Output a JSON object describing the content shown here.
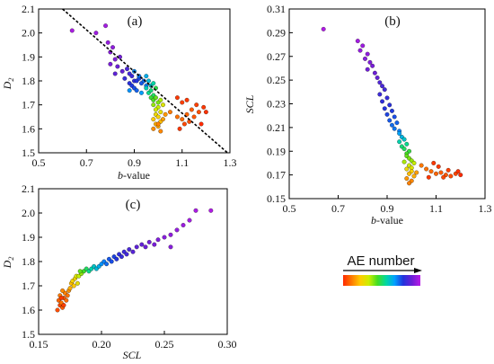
{
  "legend": {
    "title": "AE number"
  },
  "colorscale": [
    "#ff2a00",
    "#ff7a00",
    "#ffcc00",
    "#ccee00",
    "#44dd22",
    "#00d8a0",
    "#00a0ff",
    "#2233dd",
    "#6a1fd6",
    "#b81be6"
  ],
  "chart_data": [
    {
      "id": "a",
      "panel_label": "(a)",
      "type": "scatter",
      "xlabel": "b-value",
      "ylabel": "D2",
      "xlim": [
        0.5,
        1.3
      ],
      "ylim": [
        1.5,
        2.1
      ],
      "xticks": [
        "0.5",
        "0.7",
        "0.9",
        "1.1",
        "1.3"
      ],
      "yticks": [
        "1.5",
        "1.6",
        "1.7",
        "1.8",
        "1.9",
        "2.0",
        "2.1"
      ],
      "fit_line": {
        "x": [
          0.6,
          1.29
        ],
        "y": [
          2.1,
          1.5
        ]
      },
      "points": [
        [
          0.64,
          2.01,
          0.98
        ],
        [
          0.78,
          2.03,
          0.97
        ],
        [
          0.74,
          2.0,
          0.96
        ],
        [
          0.79,
          1.96,
          0.95
        ],
        [
          0.81,
          1.94,
          0.94
        ],
        [
          0.8,
          1.92,
          0.93
        ],
        [
          0.82,
          1.89,
          0.92
        ],
        [
          0.8,
          1.87,
          0.91
        ],
        [
          0.84,
          1.9,
          0.9
        ],
        [
          0.83,
          1.86,
          0.89
        ],
        [
          0.85,
          1.84,
          0.88
        ],
        [
          0.82,
          1.83,
          0.87
        ],
        [
          0.87,
          1.85,
          0.84
        ],
        [
          0.88,
          1.83,
          0.83
        ],
        [
          0.89,
          1.82,
          0.82
        ],
        [
          0.86,
          1.81,
          0.81
        ],
        [
          0.9,
          1.8,
          0.8
        ],
        [
          0.88,
          1.79,
          0.79
        ],
        [
          0.91,
          1.8,
          0.78
        ],
        [
          0.89,
          1.78,
          0.77
        ],
        [
          0.92,
          1.81,
          0.76
        ],
        [
          0.9,
          1.77,
          0.75
        ],
        [
          0.93,
          1.79,
          0.74
        ],
        [
          0.91,
          1.76,
          0.73
        ],
        [
          0.94,
          1.8,
          0.72
        ],
        [
          0.92,
          1.82,
          0.71
        ],
        [
          0.95,
          1.78,
          0.7
        ],
        [
          0.9,
          1.84,
          0.69
        ],
        [
          0.88,
          1.76,
          0.68
        ],
        [
          0.93,
          1.75,
          0.67
        ],
        [
          0.95,
          1.82,
          0.64
        ],
        [
          0.96,
          1.8,
          0.62
        ],
        [
          0.97,
          1.78,
          0.6
        ],
        [
          0.95,
          1.77,
          0.58
        ],
        [
          0.98,
          1.79,
          0.56
        ],
        [
          0.96,
          1.75,
          0.54
        ],
        [
          0.97,
          1.76,
          0.52
        ],
        [
          0.98,
          1.74,
          0.5
        ],
        [
          0.99,
          1.77,
          0.48
        ],
        [
          0.97,
          1.73,
          0.46
        ],
        [
          0.98,
          1.72,
          0.44
        ],
        [
          0.99,
          1.73,
          0.42
        ],
        [
          1.0,
          1.71,
          0.4
        ],
        [
          0.98,
          1.7,
          0.38
        ],
        [
          1.01,
          1.72,
          0.36
        ],
        [
          1.0,
          1.69,
          0.34
        ],
        [
          0.99,
          1.68,
          0.32
        ],
        [
          1.02,
          1.7,
          0.3
        ],
        [
          1.01,
          1.67,
          0.28
        ],
        [
          0.99,
          1.66,
          0.26
        ],
        [
          1.0,
          1.65,
          0.24
        ],
        [
          0.98,
          1.64,
          0.22
        ],
        [
          1.01,
          1.63,
          0.2
        ],
        [
          0.99,
          1.62,
          0.18
        ],
        [
          1.0,
          1.61,
          0.17
        ],
        [
          1.02,
          1.64,
          0.16
        ],
        [
          1.03,
          1.66,
          0.15
        ],
        [
          0.98,
          1.6,
          0.14
        ],
        [
          1.01,
          1.59,
          0.13
        ],
        [
          1.0,
          1.62,
          0.12
        ],
        [
          1.05,
          1.67,
          0.11
        ],
        [
          1.08,
          1.65,
          0.1
        ],
        [
          1.1,
          1.64,
          0.09
        ],
        [
          1.12,
          1.66,
          0.08
        ],
        [
          1.14,
          1.68,
          0.07
        ],
        [
          1.15,
          1.65,
          0.06
        ],
        [
          1.17,
          1.67,
          0.05
        ],
        [
          1.13,
          1.63,
          0.05
        ],
        [
          1.11,
          1.62,
          0.04
        ],
        [
          1.16,
          1.7,
          0.03
        ],
        [
          1.08,
          1.73,
          0.02
        ],
        [
          1.1,
          1.71,
          0.03
        ],
        [
          1.12,
          1.72,
          0.02
        ],
        [
          1.19,
          1.69,
          0.02
        ],
        [
          1.2,
          1.67,
          0.01
        ],
        [
          1.18,
          1.62,
          0.0
        ],
        [
          1.09,
          1.6,
          0.02
        ]
      ]
    },
    {
      "id": "b",
      "panel_label": "(b)",
      "type": "scatter",
      "xlabel": "b-value",
      "ylabel": "SCL",
      "xlim": [
        0.5,
        1.3
      ],
      "ylim": [
        0.15,
        0.31
      ],
      "xticks": [
        "0.5",
        "0.7",
        "0.9",
        "1.1",
        "1.3"
      ],
      "yticks": [
        "0.15",
        "0.17",
        "0.19",
        "0.21",
        "0.23",
        "0.25",
        "0.27",
        "0.29",
        "0.31"
      ],
      "points": [
        [
          0.64,
          0.293,
          0.99
        ],
        [
          0.78,
          0.283,
          0.97
        ],
        [
          0.8,
          0.279,
          0.96
        ],
        [
          0.79,
          0.275,
          0.95
        ],
        [
          0.82,
          0.272,
          0.94
        ],
        [
          0.81,
          0.268,
          0.93
        ],
        [
          0.83,
          0.265,
          0.92
        ],
        [
          0.84,
          0.262,
          0.91
        ],
        [
          0.82,
          0.259,
          0.9
        ],
        [
          0.85,
          0.256,
          0.89
        ],
        [
          0.86,
          0.252,
          0.88
        ],
        [
          0.87,
          0.248,
          0.85
        ],
        [
          0.88,
          0.245,
          0.84
        ],
        [
          0.89,
          0.242,
          0.83
        ],
        [
          0.87,
          0.238,
          0.82
        ],
        [
          0.9,
          0.235,
          0.81
        ],
        [
          0.88,
          0.232,
          0.8
        ],
        [
          0.91,
          0.229,
          0.79
        ],
        [
          0.89,
          0.226,
          0.78
        ],
        [
          0.92,
          0.224,
          0.77
        ],
        [
          0.9,
          0.221,
          0.76
        ],
        [
          0.93,
          0.219,
          0.75
        ],
        [
          0.91,
          0.216,
          0.74
        ],
        [
          0.94,
          0.214,
          0.73
        ],
        [
          0.92,
          0.212,
          0.72
        ],
        [
          0.93,
          0.209,
          0.71
        ],
        [
          0.95,
          0.207,
          0.7
        ],
        [
          0.95,
          0.205,
          0.66
        ],
        [
          0.96,
          0.202,
          0.63
        ],
        [
          0.97,
          0.2,
          0.6
        ],
        [
          0.95,
          0.198,
          0.57
        ],
        [
          0.98,
          0.196,
          0.54
        ],
        [
          0.96,
          0.194,
          0.52
        ],
        [
          0.97,
          0.192,
          0.5
        ],
        [
          0.99,
          0.19,
          0.47
        ],
        [
          0.98,
          0.188,
          0.45
        ],
        [
          0.98,
          0.186,
          0.42
        ],
        [
          0.99,
          0.184,
          0.4
        ],
        [
          1.0,
          0.182,
          0.38
        ],
        [
          0.97,
          0.181,
          0.36
        ],
        [
          1.01,
          0.18,
          0.34
        ],
        [
          0.99,
          0.178,
          0.32
        ],
        [
          1.0,
          0.176,
          0.3
        ],
        [
          0.98,
          0.175,
          0.26
        ],
        [
          1.0,
          0.173,
          0.23
        ],
        [
          0.99,
          0.171,
          0.2
        ],
        [
          1.01,
          0.169,
          0.18
        ],
        [
          1.02,
          0.172,
          0.16
        ],
        [
          0.98,
          0.167,
          0.15
        ],
        [
          1.0,
          0.165,
          0.13
        ],
        [
          0.99,
          0.163,
          0.12
        ],
        [
          1.04,
          0.178,
          0.11
        ],
        [
          1.06,
          0.175,
          0.1
        ],
        [
          1.08,
          0.173,
          0.09
        ],
        [
          1.1,
          0.171,
          0.08
        ],
        [
          1.12,
          0.172,
          0.07
        ],
        [
          1.14,
          0.17,
          0.06
        ],
        [
          1.16,
          0.169,
          0.05
        ],
        [
          1.18,
          0.171,
          0.04
        ],
        [
          1.13,
          0.168,
          0.04
        ],
        [
          1.15,
          0.174,
          0.03
        ],
        [
          1.09,
          0.18,
          0.02
        ],
        [
          1.11,
          0.177,
          0.02
        ],
        [
          1.19,
          0.173,
          0.01
        ],
        [
          1.2,
          0.17,
          0.0
        ],
        [
          1.07,
          0.168,
          0.02
        ]
      ]
    },
    {
      "id": "c",
      "panel_label": "(c)",
      "type": "scatter",
      "xlabel": "SCL",
      "ylabel": "D2",
      "xlim": [
        0.15,
        0.3
      ],
      "ylim": [
        1.5,
        2.1
      ],
      "xticks": [
        "0.15",
        "0.20",
        "0.25",
        "0.30"
      ],
      "yticks": [
        "1.5",
        "1.6",
        "1.7",
        "1.8",
        "1.9",
        "2.0",
        "2.1"
      ],
      "points": [
        [
          0.165,
          1.6,
          0.05
        ],
        [
          0.167,
          1.62,
          0.04
        ],
        [
          0.169,
          1.61,
          0.07
        ],
        [
          0.166,
          1.64,
          0.08
        ],
        [
          0.168,
          1.63,
          0.1
        ],
        [
          0.17,
          1.65,
          0.06
        ],
        [
          0.172,
          1.64,
          0.09
        ],
        [
          0.167,
          1.66,
          0.11
        ],
        [
          0.171,
          1.67,
          0.12
        ],
        [
          0.173,
          1.66,
          0.1
        ],
        [
          0.169,
          1.68,
          0.13
        ],
        [
          0.174,
          1.68,
          0.14
        ],
        [
          0.17,
          1.62,
          0.03
        ],
        [
          0.168,
          1.65,
          0.02
        ],
        [
          0.175,
          1.69,
          0.18
        ],
        [
          0.176,
          1.71,
          0.2
        ],
        [
          0.178,
          1.7,
          0.22
        ],
        [
          0.177,
          1.72,
          0.24
        ],
        [
          0.179,
          1.73,
          0.26
        ],
        [
          0.181,
          1.71,
          0.28
        ],
        [
          0.18,
          1.74,
          0.3
        ],
        [
          0.182,
          1.74,
          0.34
        ],
        [
          0.184,
          1.75,
          0.38
        ],
        [
          0.183,
          1.76,
          0.42
        ],
        [
          0.186,
          1.76,
          0.45
        ],
        [
          0.188,
          1.77,
          0.5
        ],
        [
          0.19,
          1.76,
          0.54
        ],
        [
          0.192,
          1.77,
          0.57
        ],
        [
          0.194,
          1.78,
          0.6
        ],
        [
          0.196,
          1.77,
          0.62
        ],
        [
          0.198,
          1.78,
          0.64
        ],
        [
          0.2,
          1.79,
          0.68
        ],
        [
          0.202,
          1.8,
          0.7
        ],
        [
          0.204,
          1.79,
          0.72
        ],
        [
          0.206,
          1.81,
          0.74
        ],
        [
          0.208,
          1.8,
          0.75
        ],
        [
          0.21,
          1.82,
          0.76
        ],
        [
          0.212,
          1.81,
          0.78
        ],
        [
          0.214,
          1.83,
          0.8
        ],
        [
          0.216,
          1.82,
          0.81
        ],
        [
          0.218,
          1.84,
          0.82
        ],
        [
          0.22,
          1.83,
          0.83
        ],
        [
          0.222,
          1.85,
          0.84
        ],
        [
          0.225,
          1.84,
          0.86
        ],
        [
          0.228,
          1.86,
          0.87
        ],
        [
          0.232,
          1.87,
          0.88
        ],
        [
          0.235,
          1.86,
          0.89
        ],
        [
          0.238,
          1.88,
          0.9
        ],
        [
          0.242,
          1.87,
          0.91
        ],
        [
          0.245,
          1.89,
          0.92
        ],
        [
          0.25,
          1.9,
          0.93
        ],
        [
          0.255,
          1.91,
          0.94
        ],
        [
          0.26,
          1.93,
          0.95
        ],
        [
          0.265,
          1.95,
          0.96
        ],
        [
          0.27,
          1.97,
          0.97
        ],
        [
          0.275,
          2.01,
          0.98
        ],
        [
          0.287,
          2.01,
          0.99
        ],
        [
          0.255,
          1.86,
          0.93
        ]
      ]
    }
  ]
}
